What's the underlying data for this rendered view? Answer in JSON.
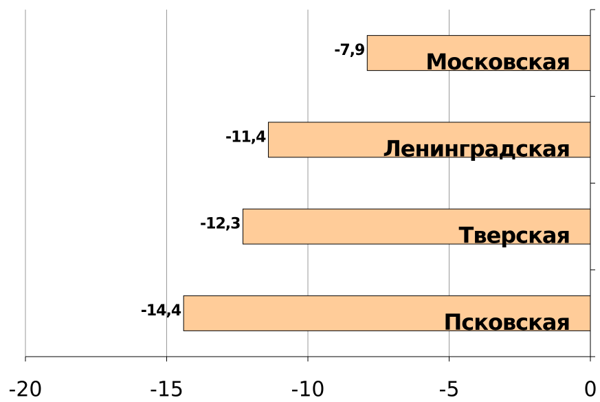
{
  "chart_data": {
    "type": "bar",
    "orientation": "horizontal",
    "categories": [
      "Московская",
      "Ленинградская",
      "Тверская",
      "Псковская"
    ],
    "values": [
      -7.9,
      -11.4,
      -12.3,
      -14.4
    ],
    "value_labels": [
      "-7,9",
      "-11,4",
      "-12,3",
      "-14,4"
    ],
    "color": "#ffcc99",
    "xlim": [
      -20,
      0
    ],
    "xticks": [
      -20,
      -15,
      -10,
      -5,
      0
    ],
    "grid": true
  }
}
